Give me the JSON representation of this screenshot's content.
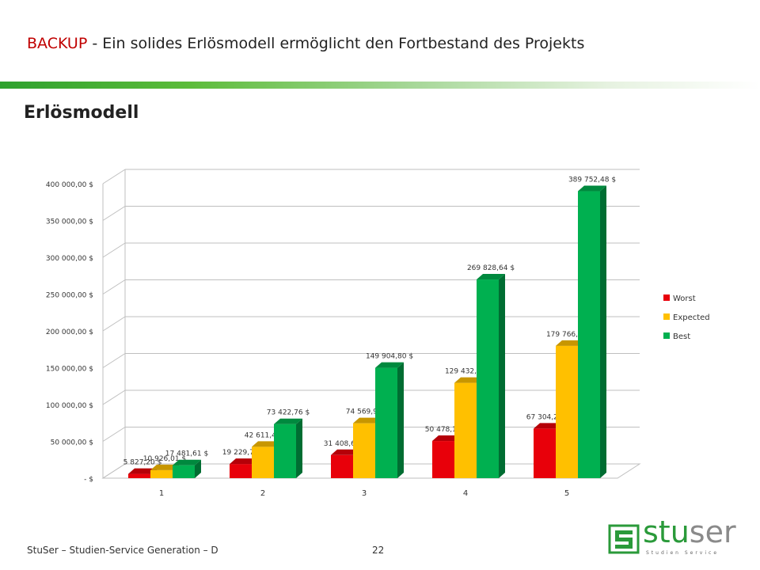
{
  "slide": {
    "title_prefix": "BACKUP",
    "title_rest": " - Ein solides Erlösmodell ermöglicht den Fortbestand des Projekts",
    "subtitle": "Erlösmodell",
    "footer": "StuSer – Studien-Service Generation – D",
    "page": "22",
    "logo_main": "stu",
    "logo_accent": "ser",
    "logo_sub": "Studien Service"
  },
  "colors": {
    "worst": "#e8000a",
    "expected": "#ffc000",
    "best": "#00b050",
    "title_accent": "#c00000"
  },
  "chart_data": {
    "type": "bar",
    "title": "",
    "xlabel": "",
    "ylabel": "",
    "categories": [
      "1",
      "2",
      "3",
      "4",
      "5"
    ],
    "series": [
      {
        "name": "Worst",
        "values": [
          5827.2,
          19229.77,
          31408.62,
          50478.15,
          67304.2
        ],
        "labels": [
          "5 827,20 $",
          "19 229,77 $",
          "31 408,62 $",
          "50 478,15 $",
          "67 304,20 $"
        ]
      },
      {
        "name": "Expected",
        "values": [
          10926.01,
          42611.42,
          74569.99,
          129432.2,
          179766.94
        ],
        "labels": [
          "10 926,01 $",
          "42 611,42 $",
          "74 569,99 $",
          "129 432,20 $",
          "179 766,94 $"
        ]
      },
      {
        "name": "Best",
        "values": [
          17481.61,
          73422.76,
          149904.8,
          269828.64,
          389752.48
        ],
        "labels": [
          "17 481,61 $",
          "73 422,76 $",
          "149 904,80 $",
          "269 828,64 $",
          "389 752,48 $"
        ]
      }
    ],
    "ylim": [
      0,
      400000
    ],
    "yticks": [
      {
        "value": 0,
        "label": "-   $"
      },
      {
        "value": 50000,
        "label": "50 000,00 $"
      },
      {
        "value": 100000,
        "label": "100 000,00 $"
      },
      {
        "value": 150000,
        "label": "150 000,00 $"
      },
      {
        "value": 200000,
        "label": "200 000,00 $"
      },
      {
        "value": 250000,
        "label": "250 000,00 $"
      },
      {
        "value": 300000,
        "label": "300 000,00 $"
      },
      {
        "value": 350000,
        "label": "350 000,00 $"
      },
      {
        "value": 400000,
        "label": "400 000,00 $"
      }
    ],
    "grid": true,
    "legend": "right",
    "style": "3d-clustered"
  }
}
